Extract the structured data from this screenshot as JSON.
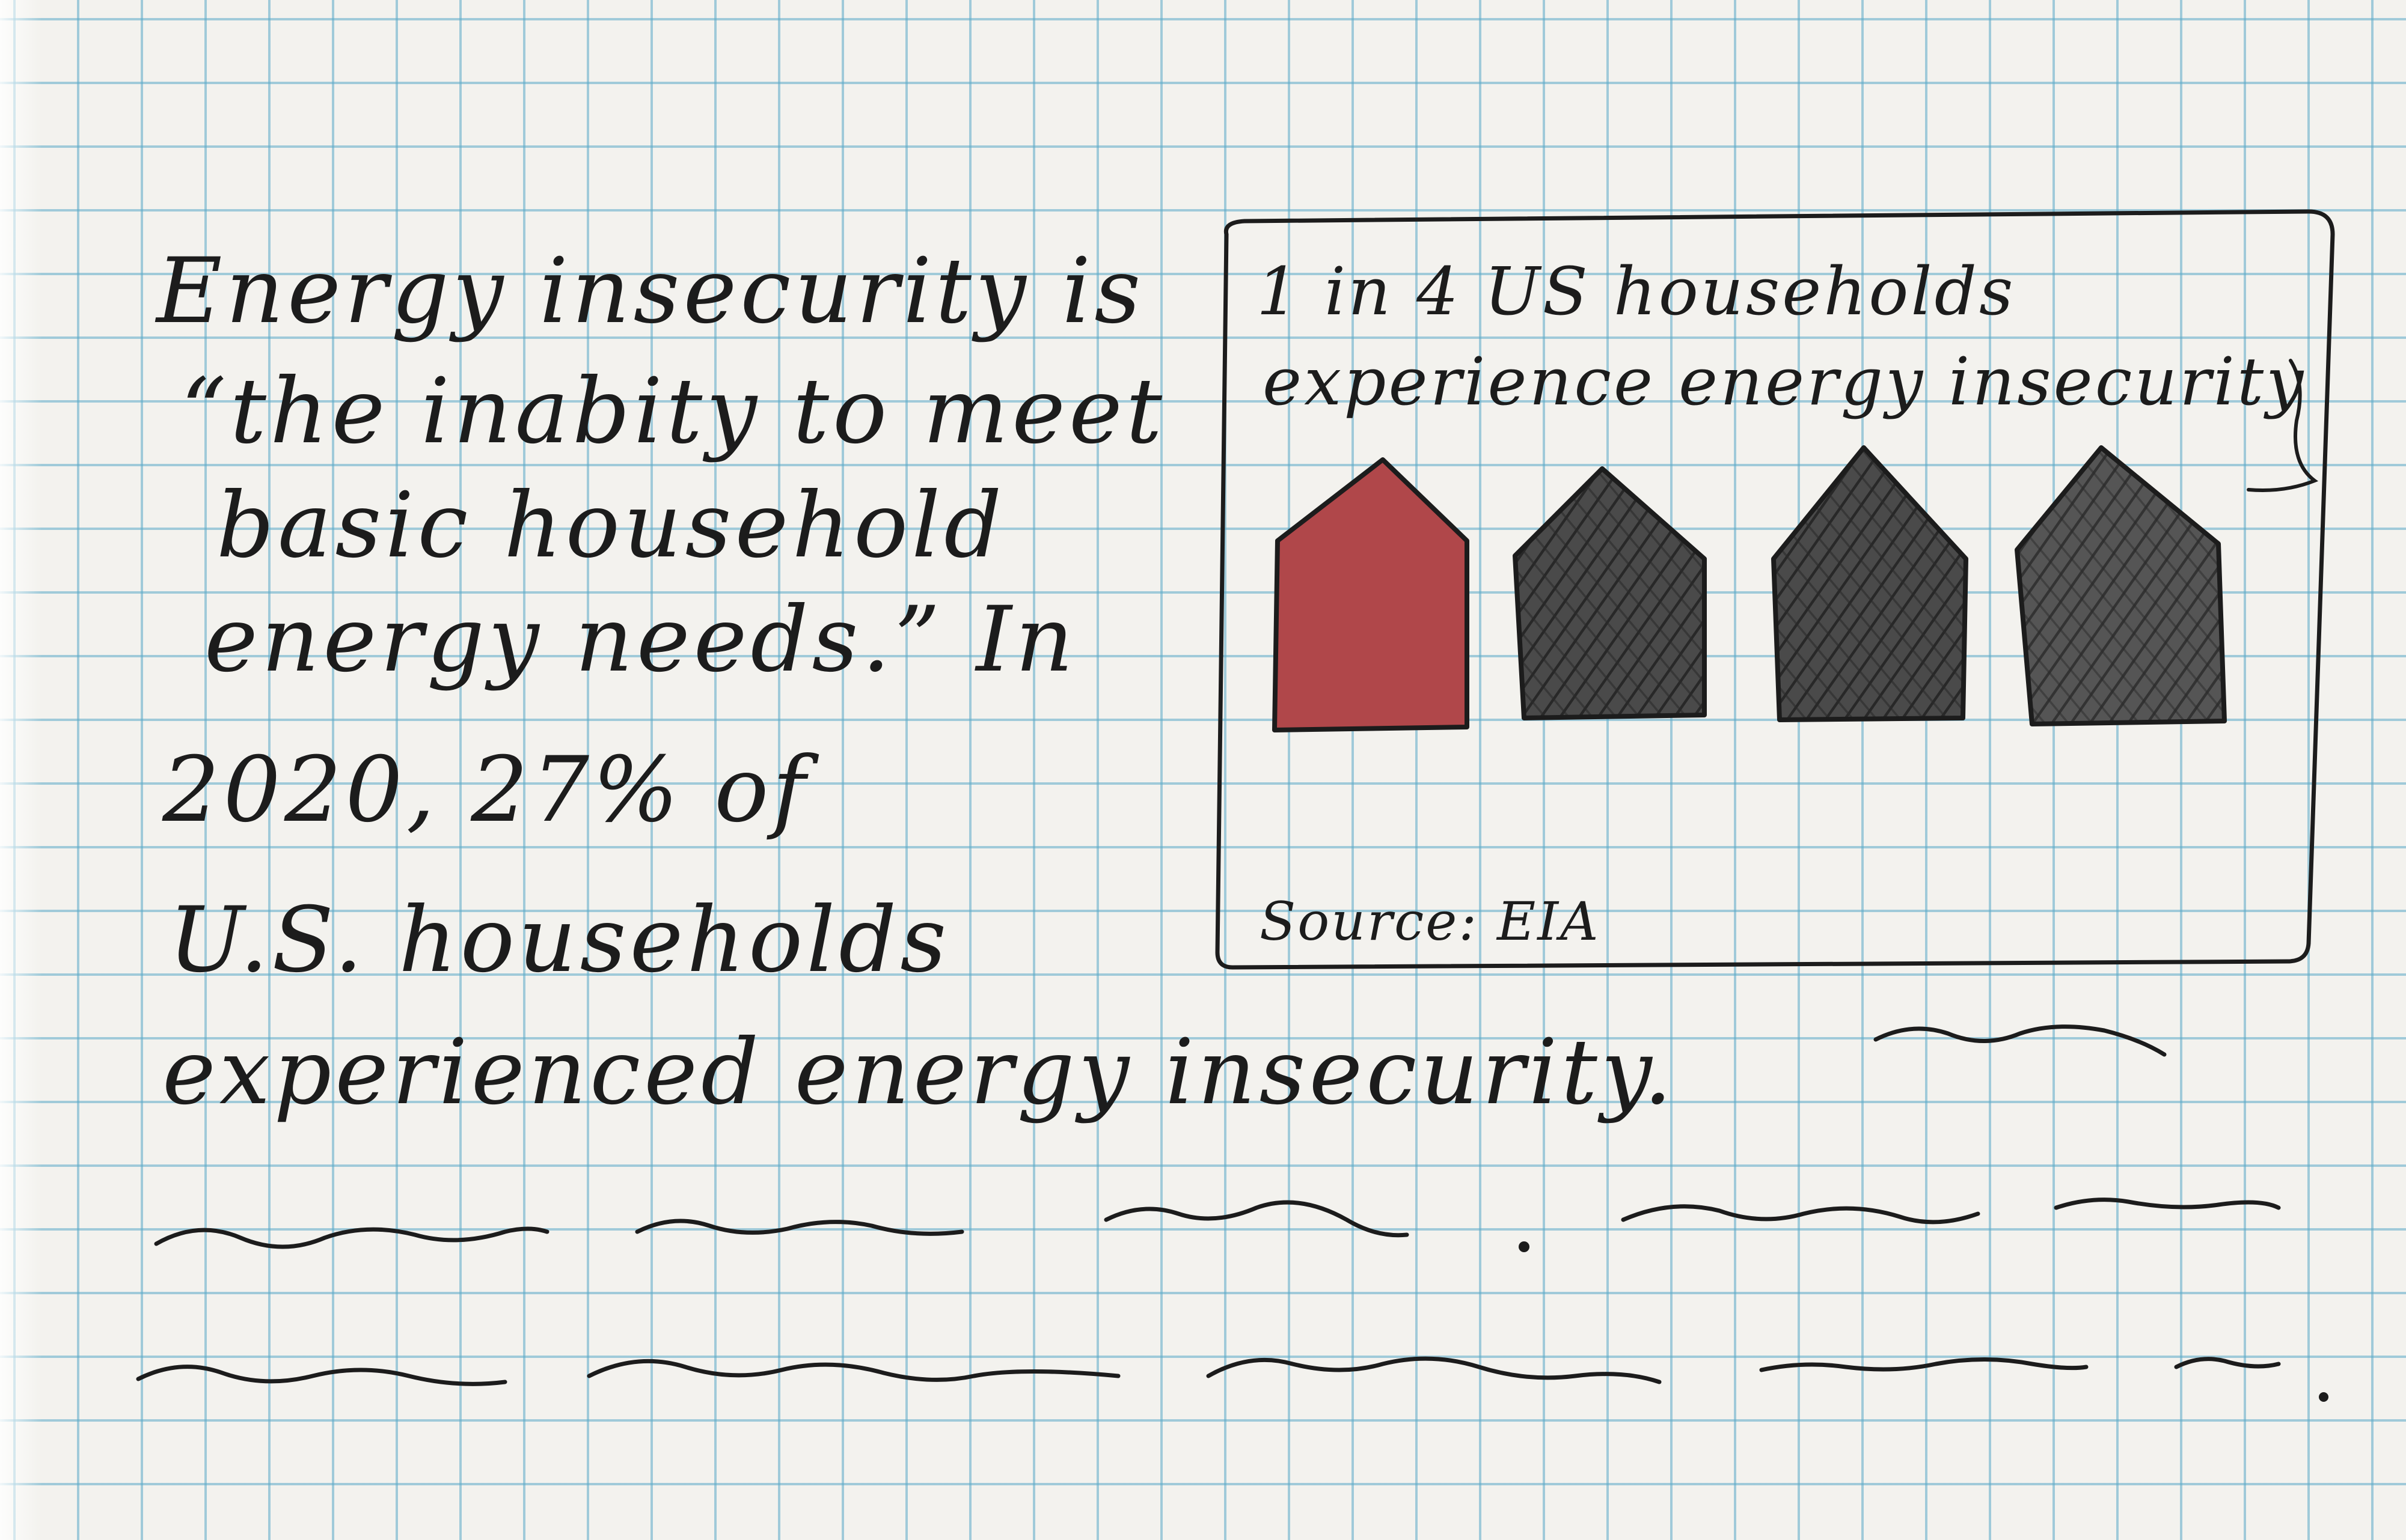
{
  "paragraph": {
    "lines": [
      "Energy insecurity is",
      "“the inabity to meet",
      "basic household",
      "energy needs.” In",
      "2020, 27% of",
      "U.S. households",
      "experienced energy insecurity."
    ]
  },
  "infographic": {
    "title_line1": "1 in 4 US households",
    "title_line2": "experience energy insecurity",
    "houses": {
      "total": 4,
      "highlighted": 1,
      "highlight_color": "#b0474a",
      "other_color": "#3a3a3a"
    },
    "source": "Source: EIA"
  },
  "colors": {
    "paper": "#f3f2ee",
    "grid": "#5aaac8",
    "ink": "#1c1c1c"
  }
}
